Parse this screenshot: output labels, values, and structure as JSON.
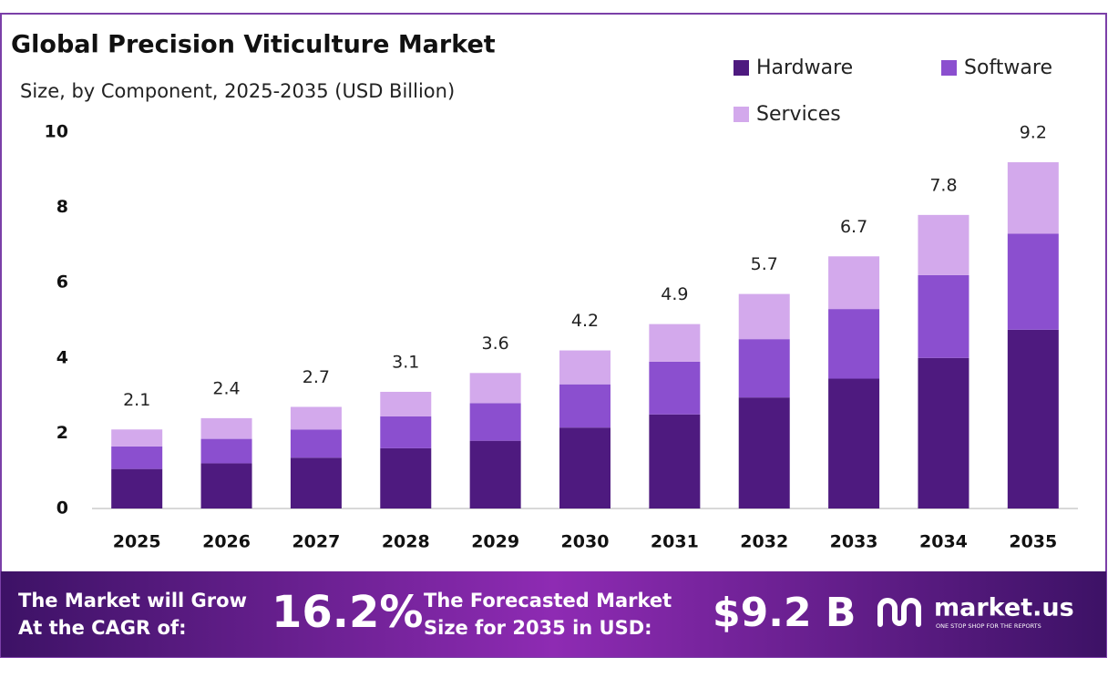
{
  "chart_data": {
    "type": "stacked_bar",
    "title": "Global Precision Viticulture Market",
    "subtitle": "Size, by Component, 2025-2035 (USD Billion)",
    "categories": [
      "2025",
      "2026",
      "2027",
      "2028",
      "2029",
      "2030",
      "2031",
      "2032",
      "2033",
      "2034",
      "2035"
    ],
    "series": [
      {
        "name": "Hardware",
        "color": "#4e1a7f",
        "values": [
          1.05,
          1.2,
          1.35,
          1.6,
          1.8,
          2.15,
          2.5,
          2.95,
          3.45,
          4.0,
          4.75
        ]
      },
      {
        "name": "Software",
        "color": "#8b4fcf",
        "values": [
          0.6,
          0.65,
          0.75,
          0.85,
          1.0,
          1.15,
          1.4,
          1.55,
          1.85,
          2.2,
          2.55
        ]
      },
      {
        "name": "Services",
        "color": "#d3a9ec",
        "values": [
          0.45,
          0.55,
          0.6,
          0.65,
          0.8,
          0.9,
          1.0,
          1.2,
          1.4,
          1.6,
          1.9
        ]
      }
    ],
    "totals": [
      2.1,
      2.4,
      2.7,
      3.1,
      3.6,
      4.2,
      4.9,
      5.7,
      6.7,
      7.8,
      9.2
    ],
    "ylim": [
      0,
      10
    ],
    "yticks": [
      0,
      2,
      4,
      6,
      8,
      10
    ],
    "grid": false
  },
  "footer": {
    "cagr_text": [
      "The Market will Grow",
      "At the CAGR of:"
    ],
    "cagr_value": "16.2%",
    "forecast_text": [
      "The Forecasted Market",
      "Size for 2035 in USD:"
    ],
    "forecast_value": "$9.2 B",
    "brand": "market.us",
    "tagline": "ONE STOP SHOP FOR THE REPORTS"
  }
}
